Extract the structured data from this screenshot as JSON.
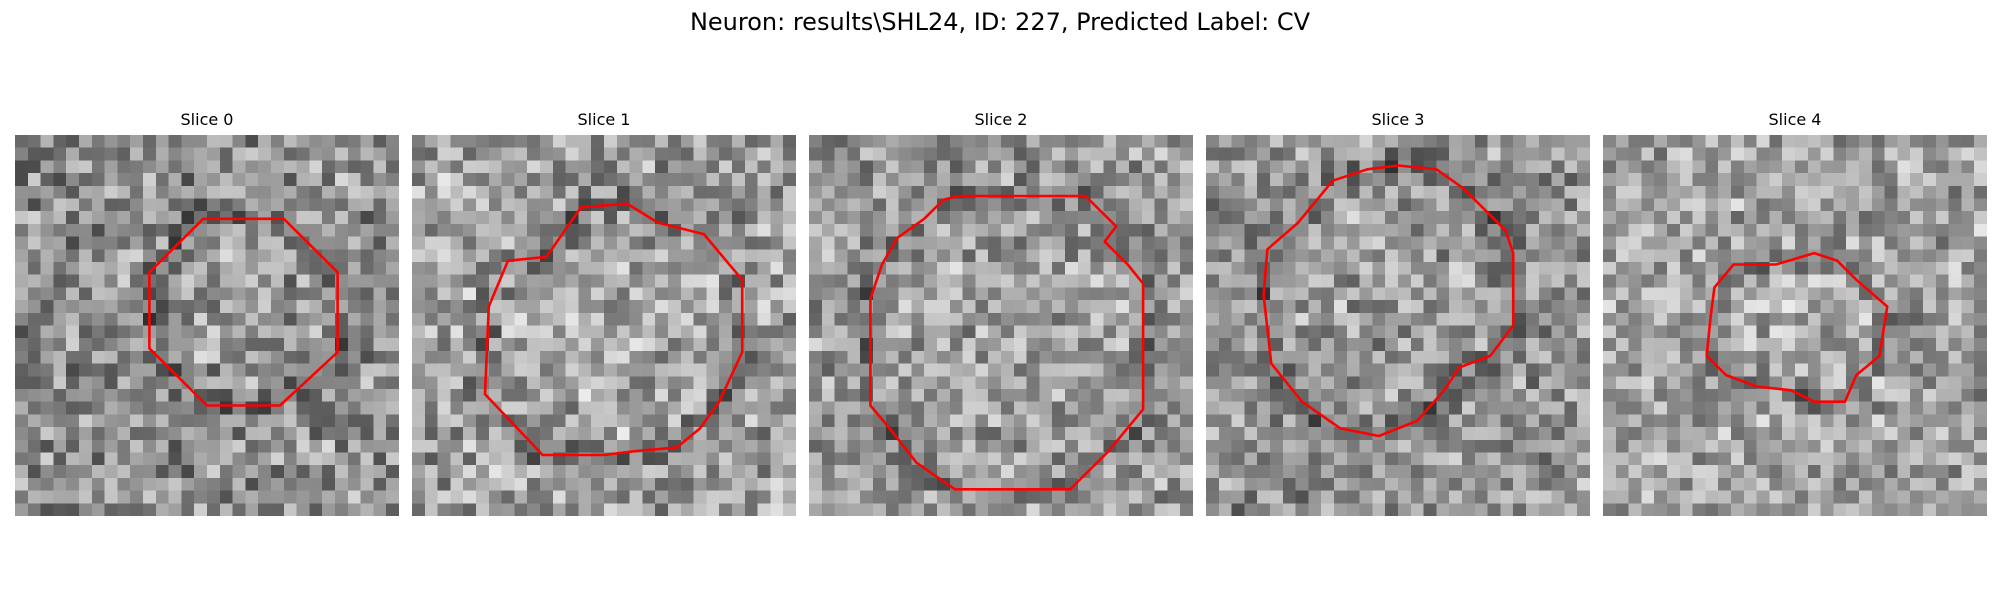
{
  "figure": {
    "title": "Neuron: results\\SHL24, ID: 227, Predicted Label: CV"
  },
  "contour_color": "#ff0000",
  "slices": [
    {
      "title": "Slice 0",
      "seed": 11,
      "base_tone": 0.56,
      "contrast": 0.24,
      "contour": [
        [
          0.49,
          0.22
        ],
        [
          0.7,
          0.22
        ],
        [
          0.84,
          0.36
        ],
        [
          0.84,
          0.57
        ],
        [
          0.69,
          0.71
        ],
        [
          0.5,
          0.71
        ],
        [
          0.35,
          0.56
        ],
        [
          0.35,
          0.36
        ]
      ]
    },
    {
      "title": "Slice 1",
      "seed": 23,
      "base_tone": 0.62,
      "contrast": 0.24,
      "contour": [
        [
          0.35,
          0.32
        ],
        [
          0.44,
          0.19
        ],
        [
          0.56,
          0.18
        ],
        [
          0.64,
          0.23
        ],
        [
          0.76,
          0.26
        ],
        [
          0.86,
          0.38
        ],
        [
          0.86,
          0.57
        ],
        [
          0.8,
          0.7
        ],
        [
          0.75,
          0.77
        ],
        [
          0.69,
          0.82
        ],
        [
          0.58,
          0.83
        ],
        [
          0.5,
          0.84
        ],
        [
          0.34,
          0.84
        ],
        [
          0.19,
          0.68
        ],
        [
          0.2,
          0.45
        ],
        [
          0.25,
          0.33
        ]
      ]
    },
    {
      "title": "Slice 2",
      "seed": 37,
      "base_tone": 0.6,
      "contrast": 0.22,
      "contour": [
        [
          0.35,
          0.17
        ],
        [
          0.39,
          0.16
        ],
        [
          0.72,
          0.16
        ],
        [
          0.8,
          0.24
        ],
        [
          0.77,
          0.28
        ],
        [
          0.83,
          0.34
        ],
        [
          0.87,
          0.39
        ],
        [
          0.87,
          0.72
        ],
        [
          0.78,
          0.83
        ],
        [
          0.68,
          0.93
        ],
        [
          0.38,
          0.93
        ],
        [
          0.28,
          0.86
        ],
        [
          0.21,
          0.77
        ],
        [
          0.16,
          0.71
        ],
        [
          0.16,
          0.43
        ],
        [
          0.19,
          0.34
        ],
        [
          0.23,
          0.27
        ],
        [
          0.3,
          0.22
        ]
      ]
    },
    {
      "title": "Slice 3",
      "seed": 51,
      "base_tone": 0.58,
      "contrast": 0.22,
      "contour": [
        [
          0.24,
          0.23
        ],
        [
          0.33,
          0.12
        ],
        [
          0.42,
          0.09
        ],
        [
          0.5,
          0.08
        ],
        [
          0.6,
          0.09
        ],
        [
          0.67,
          0.14
        ],
        [
          0.78,
          0.25
        ],
        [
          0.8,
          0.31
        ],
        [
          0.8,
          0.5
        ],
        [
          0.74,
          0.58
        ],
        [
          0.66,
          0.61
        ],
        [
          0.62,
          0.67
        ],
        [
          0.55,
          0.75
        ],
        [
          0.45,
          0.79
        ],
        [
          0.35,
          0.77
        ],
        [
          0.25,
          0.7
        ],
        [
          0.17,
          0.6
        ],
        [
          0.15,
          0.42
        ],
        [
          0.16,
          0.3
        ]
      ]
    },
    {
      "title": "Slice 4",
      "seed": 67,
      "base_tone": 0.64,
      "contrast": 0.21,
      "contour": [
        [
          0.29,
          0.4
        ],
        [
          0.34,
          0.34
        ],
        [
          0.45,
          0.34
        ],
        [
          0.55,
          0.31
        ],
        [
          0.61,
          0.33
        ],
        [
          0.66,
          0.38
        ],
        [
          0.74,
          0.45
        ],
        [
          0.72,
          0.58
        ],
        [
          0.66,
          0.63
        ],
        [
          0.63,
          0.7
        ],
        [
          0.55,
          0.7
        ],
        [
          0.49,
          0.67
        ],
        [
          0.4,
          0.66
        ],
        [
          0.32,
          0.63
        ],
        [
          0.27,
          0.58
        ],
        [
          0.28,
          0.48
        ]
      ]
    }
  ]
}
